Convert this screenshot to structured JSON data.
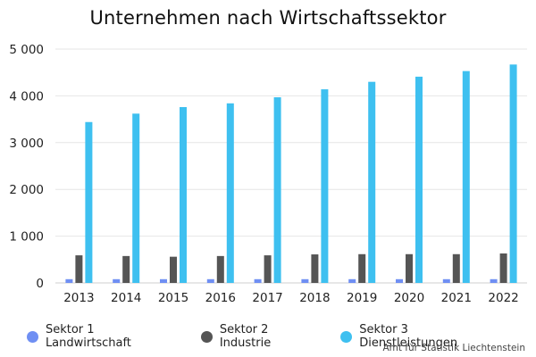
{
  "title": "Unternehmen nach Wirtschaftssektor",
  "source": "Amt für Statistik Liechtenstein",
  "chart_data": {
    "type": "bar",
    "title": "Unternehmen nach Wirtschaftssektor",
    "xlabel": "",
    "ylabel": "",
    "ylim": [
      0,
      5000
    ],
    "yticks": [
      0,
      1000,
      2000,
      3000,
      4000,
      5000
    ],
    "ytick_labels": [
      "0",
      "1 000",
      "2 000",
      "3 000",
      "4 000",
      "5 000"
    ],
    "grid": true,
    "legend_position": "bottom",
    "categories": [
      "2013",
      "2014",
      "2015",
      "2016",
      "2017",
      "2018",
      "2019",
      "2020",
      "2021",
      "2022"
    ],
    "series": [
      {
        "name": "Sektor 1 Landwirtschaft",
        "color": "#6f8ff3",
        "values": [
          80,
          80,
          80,
          80,
          80,
          80,
          80,
          80,
          80,
          80
        ]
      },
      {
        "name": "Sektor 2 Industrie",
        "color": "#555555",
        "values": [
          590,
          575,
          560,
          575,
          590,
          610,
          615,
          615,
          615,
          630
        ]
      },
      {
        "name": "Sektor 3 Dienstleistungen",
        "color": "#3ec0f0",
        "values": [
          3440,
          3620,
          3760,
          3840,
          3970,
          4140,
          4300,
          4410,
          4530,
          4670
        ]
      }
    ]
  }
}
